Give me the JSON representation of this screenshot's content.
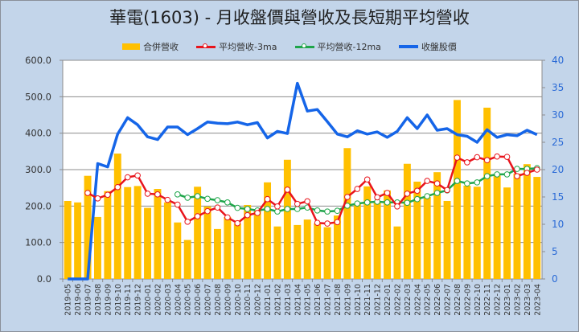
{
  "title": "華電(1603)  - 月收盤價與營收及長短期平均營收",
  "legend": [
    {
      "label": "合併營收",
      "kind": "bar",
      "color": "#ffc000"
    },
    {
      "label": "平均營收-3ma",
      "kind": "line-marker",
      "color": "#e8141c"
    },
    {
      "label": "平均營收-12ma",
      "kind": "line-marker",
      "color": "#1fa54a"
    },
    {
      "label": "收盤股價",
      "kind": "line",
      "color": "#1565e8"
    }
  ],
  "chart_data": {
    "type": "bar",
    "title": "華電(1603)  - 月收盤價與營收及長短期平均營收",
    "xlabel": "",
    "ylabel": "",
    "ylim": [
      0,
      600
    ],
    "y2lim": [
      0,
      40
    ],
    "yticks": [
      "0.0",
      "100.0",
      "200.0",
      "300.0",
      "400.0",
      "500.0",
      "600.0"
    ],
    "y2ticks": [
      "0",
      "5",
      "10",
      "15",
      "20",
      "25",
      "30",
      "35",
      "40"
    ],
    "grid": true,
    "legend_position": "top",
    "categories": [
      "2019-05",
      "2019-06",
      "2019-07",
      "2019-08",
      "2019-09",
      "2019-10",
      "2019-11",
      "2019-12",
      "2020-01",
      "2020-02",
      "2020-03",
      "2020-04",
      "2020-05",
      "2020-06",
      "2020-07",
      "2020-08",
      "2020-09",
      "2020-10",
      "2020-11",
      "2020-12",
      "2021-01",
      "2021-02",
      "2021-03",
      "2021-04",
      "2021-05",
      "2021-06",
      "2021-07",
      "2021-08",
      "2021-09",
      "2021-10",
      "2021-11",
      "2021-12",
      "2022-01",
      "2022-02",
      "2022-03",
      "2022-04",
      "2022-05",
      "2022-06",
      "2022-07",
      "2022-08",
      "2022-09",
      "2022-10",
      "2022-11",
      "2022-12",
      "2023-01",
      "2023-02",
      "2023-03",
      "2023-04"
    ],
    "series": [
      {
        "name": "合併營收",
        "type": "bar",
        "axis": "left",
        "color": "#ffc000",
        "values": [
          214,
          210,
          283,
          170,
          241,
          344,
          252,
          255,
          195,
          247,
          210,
          155,
          107,
          253,
          199,
          137,
          170,
          152,
          203,
          188,
          265,
          144,
          327,
          148,
          163,
          152,
          142,
          174,
          359,
          207,
          254,
          210,
          243,
          144,
          316,
          267,
          225,
          293,
          214,
          491,
          256,
          253,
          470,
          284,
          251,
          289,
          315,
          280
        ]
      },
      {
        "name": "平均營收-3ma",
        "type": "line",
        "axis": "left",
        "color": "#e8141c",
        "values": [
          null,
          null,
          236,
          221,
          231,
          252,
          279,
          284,
          234,
          232,
          217,
          204,
          157,
          172,
          186,
          196,
          169,
          153,
          175,
          181,
          219,
          199,
          245,
          206,
          213,
          154,
          152,
          156,
          225,
          247,
          273,
          224,
          236,
          199,
          234,
          242,
          269,
          262,
          244,
          333,
          320,
          334,
          326,
          336,
          335,
          282,
          291,
          300
        ]
      },
      {
        "name": "平均營收-12ma",
        "type": "line",
        "axis": "left",
        "color": "#1fa54a",
        "values": [
          null,
          null,
          null,
          null,
          null,
          null,
          null,
          null,
          null,
          null,
          null,
          232,
          223,
          227,
          220,
          216,
          210,
          195,
          192,
          188,
          192,
          185,
          192,
          192,
          196,
          188,
          185,
          187,
          201,
          207,
          210,
          212,
          210,
          210,
          209,
          219,
          227,
          236,
          243,
          269,
          262,
          265,
          282,
          287,
          287,
          302,
          302,
          304
        ]
      },
      {
        "name": "收盤股價",
        "type": "line",
        "axis": "right",
        "color": "#1565e8",
        "values": [
          0,
          0,
          0,
          21.1,
          20.5,
          26.5,
          29.5,
          28.2,
          26.0,
          25.5,
          27.8,
          27.8,
          26.4,
          27.5,
          28.7,
          28.5,
          28.4,
          28.7,
          28.2,
          28.6,
          25.8,
          27.0,
          26.6,
          35.8,
          30.7,
          31.0,
          28.8,
          26.5,
          26.0,
          27.1,
          26.5,
          26.9,
          25.9,
          27.0,
          29.5,
          27.5,
          30.0,
          27.2,
          27.5,
          26.4,
          26.1,
          25.0,
          27.3,
          25.9,
          26.4,
          26.2,
          27.2,
          26.4
        ]
      }
    ]
  }
}
